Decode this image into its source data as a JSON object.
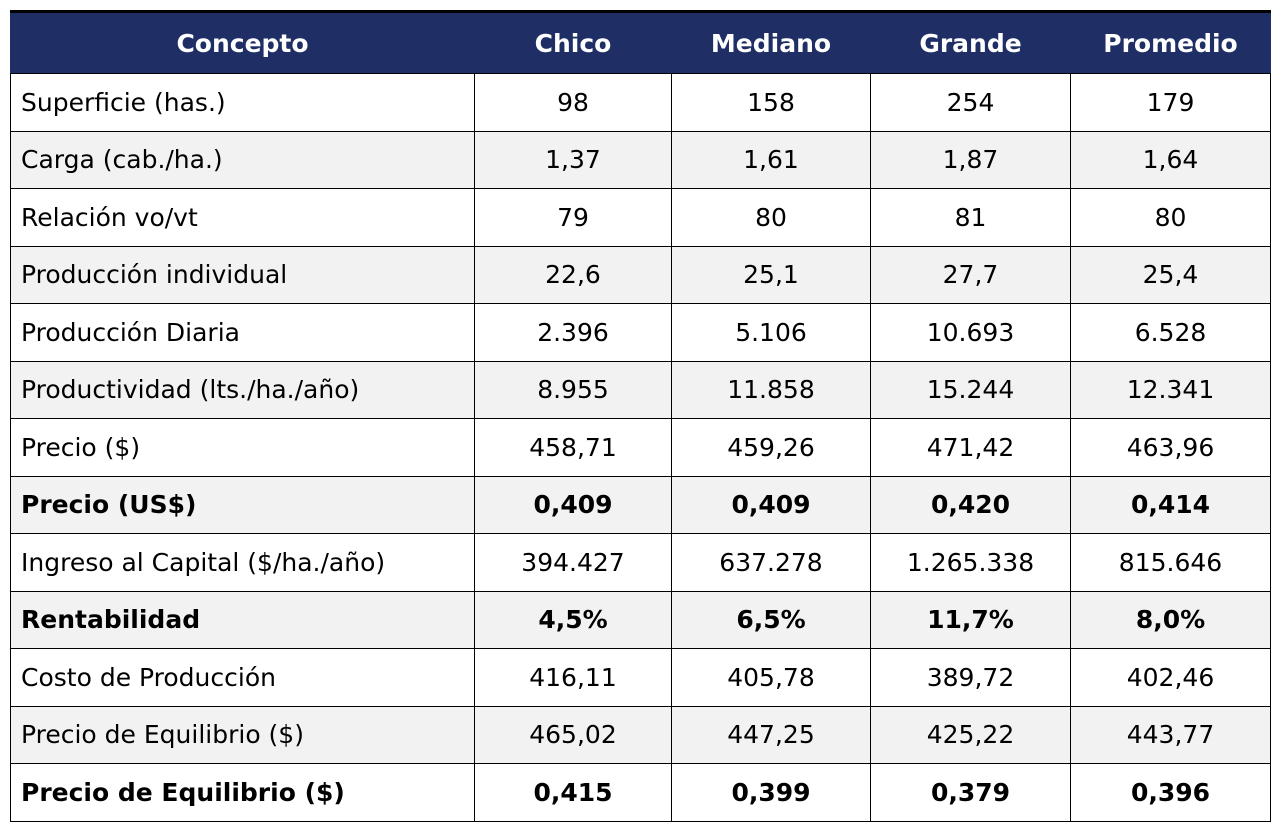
{
  "table": {
    "headers": [
      "Concepto",
      "Chico",
      "Mediano",
      "Grande",
      "Promedio"
    ],
    "rows": [
      {
        "label": "Superficie (has.)",
        "values": [
          "98",
          "158",
          "254",
          "179"
        ],
        "bold": false
      },
      {
        "label": "Carga (cab./ha.)",
        "values": [
          "1,37",
          "1,61",
          "1,87",
          "1,64"
        ],
        "bold": false
      },
      {
        "label": "Relación vo/vt",
        "values": [
          "79",
          "80",
          "81",
          "80"
        ],
        "bold": false
      },
      {
        "label": "Producción individual",
        "values": [
          "22,6",
          "25,1",
          "27,7",
          "25,4"
        ],
        "bold": false
      },
      {
        "label": "Producción Diaria",
        "values": [
          "2.396",
          "5.106",
          "10.693",
          "6.528"
        ],
        "bold": false
      },
      {
        "label": "Productividad (lts./ha./año)",
        "values": [
          "8.955",
          "11.858",
          "15.244",
          "12.341"
        ],
        "bold": false
      },
      {
        "label": "Precio ($)",
        "values": [
          "458,71",
          "459,26",
          "471,42",
          "463,96"
        ],
        "bold": false
      },
      {
        "label": "Precio (US$)",
        "values": [
          "0,409",
          "0,409",
          "0,420",
          "0,414"
        ],
        "bold": true
      },
      {
        "label": "Ingreso al Capital ($/ha./año)",
        "values": [
          "394.427",
          "637.278",
          "1.265.338",
          "815.646"
        ],
        "bold": false
      },
      {
        "label": "Rentabilidad",
        "values": [
          "4,5%",
          "6,5%",
          "11,7%",
          "8,0%"
        ],
        "bold": true
      },
      {
        "label": "Costo de Producción",
        "values": [
          "416,11",
          "405,78",
          "389,72",
          "402,46"
        ],
        "bold": false
      },
      {
        "label": "Precio de Equilibrio ($)",
        "values": [
          "465,02",
          "447,25",
          "425,22",
          "443,77"
        ],
        "bold": false
      },
      {
        "label": "Precio de Equilibrio ($)",
        "values": [
          "0,415",
          "0,399",
          "0,379",
          "0,396"
        ],
        "bold": true
      }
    ]
  },
  "colors": {
    "header_bg": "#1f2f66",
    "header_text": "#ffffff",
    "shaded_row_bg": "#f2f2f2"
  }
}
